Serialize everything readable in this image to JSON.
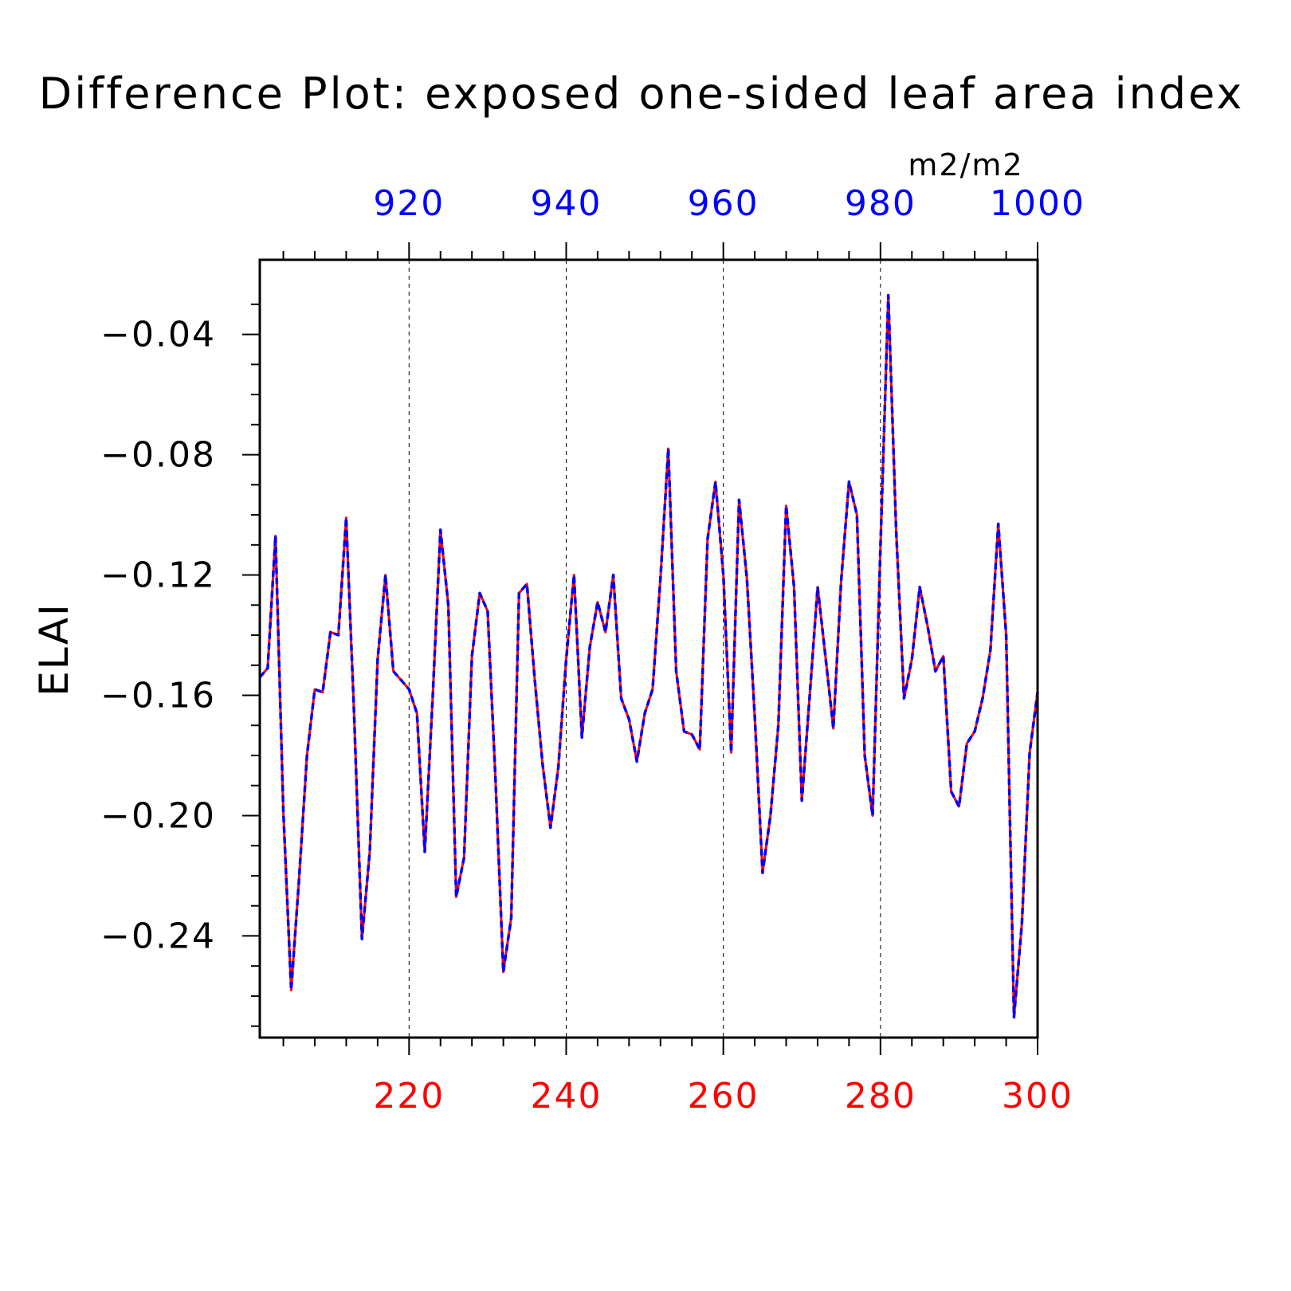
{
  "chart_data": {
    "type": "line",
    "title": "Difference Plot: exposed one-sided leaf area index",
    "units": "m2/m2",
    "ylabel": "ELAI",
    "xlabel": "",
    "xlim": [
      201,
      300
    ],
    "ylim": [
      -0.2738,
      -0.0152
    ],
    "top_xlim": [
      901,
      1000
    ],
    "yticks": [
      -0.04,
      -0.08,
      -0.12,
      -0.16,
      -0.2,
      -0.24
    ],
    "ytick_labels": [
      "−0.04",
      "−0.08",
      "−0.12",
      "−0.16",
      "−0.20",
      "−0.24"
    ],
    "bottom_xticks": [
      220,
      240,
      260,
      280,
      300
    ],
    "bottom_xtick_labels": [
      "220",
      "240",
      "260",
      "280",
      "300"
    ],
    "top_xticks": [
      920,
      940,
      960,
      980,
      1000
    ],
    "top_xtick_labels": [
      "920",
      "940",
      "960",
      "980",
      "1000"
    ],
    "vertical_gridlines": [
      220,
      240,
      260,
      280
    ],
    "colors": {
      "bottom_axis_labels": "#ff0000",
      "top_axis_labels": "#0000ff",
      "series_a": "#ff0000",
      "series_b": "#0000ff",
      "frame": "#000000"
    },
    "x": [
      201,
      202,
      203,
      204,
      205,
      206,
      207,
      208,
      209,
      210,
      211,
      212,
      213,
      214,
      215,
      216,
      217,
      218,
      219,
      220,
      221,
      222,
      223,
      224,
      225,
      226,
      227,
      228,
      229,
      230,
      231,
      232,
      233,
      234,
      235,
      236,
      237,
      238,
      239,
      240,
      241,
      242,
      243,
      244,
      245,
      246,
      247,
      248,
      249,
      250,
      251,
      252,
      253,
      254,
      255,
      256,
      257,
      258,
      259,
      260,
      261,
      262,
      263,
      264,
      265,
      266,
      267,
      268,
      269,
      270,
      271,
      272,
      273,
      274,
      275,
      276,
      277,
      278,
      279,
      280,
      281,
      282,
      283,
      284,
      285,
      286,
      287,
      288,
      289,
      290,
      291,
      292,
      293,
      294,
      295,
      296,
      297,
      298,
      299,
      300
    ],
    "series": [
      {
        "values": [
          -0.154,
          -0.151,
          -0.107,
          -0.199,
          -0.258,
          -0.221,
          -0.18,
          -0.158,
          -0.159,
          -0.139,
          -0.14,
          -0.101,
          -0.166,
          -0.241,
          -0.212,
          -0.148,
          -0.12,
          -0.152,
          -0.155,
          -0.158,
          -0.166,
          -0.212,
          -0.161,
          -0.105,
          -0.13,
          -0.227,
          -0.214,
          -0.147,
          -0.126,
          -0.132,
          -0.188,
          -0.252,
          -0.234,
          -0.126,
          -0.123,
          -0.155,
          -0.183,
          -0.204,
          -0.184,
          -0.148,
          -0.12,
          -0.174,
          -0.144,
          -0.129,
          -0.139,
          -0.12,
          -0.161,
          -0.168,
          -0.182,
          -0.166,
          -0.158,
          -0.121,
          -0.078,
          -0.152,
          -0.172,
          -0.173,
          -0.178,
          -0.108,
          -0.089,
          -0.12,
          -0.179,
          -0.095,
          -0.121,
          -0.167,
          -0.219,
          -0.2,
          -0.17,
          -0.097,
          -0.124,
          -0.195,
          -0.16,
          -0.124,
          -0.147,
          -0.171,
          -0.122,
          -0.089,
          -0.1,
          -0.18,
          -0.2,
          -0.111,
          -0.027,
          -0.105,
          -0.161,
          -0.148,
          -0.124,
          -0.137,
          -0.152,
          -0.147,
          -0.192,
          -0.197,
          -0.176,
          -0.172,
          -0.161,
          -0.145,
          -0.103,
          -0.14,
          -0.267,
          -0.236,
          -0.179,
          -0.159
        ]
      }
    ]
  }
}
